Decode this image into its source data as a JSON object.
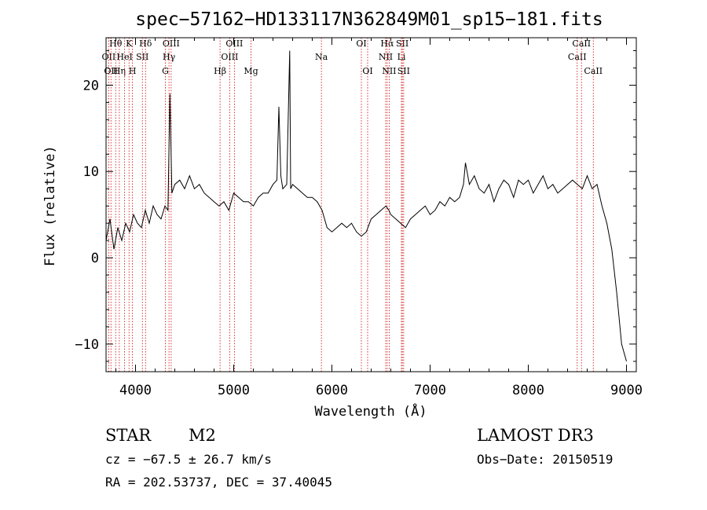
{
  "chart_data": {
    "type": "line",
    "title": "spec−57162−HD133117N362849M01_sp15−181.fits",
    "xlabel": "Wavelength (Å)",
    "ylabel": "Flux (relative)",
    "xlim": [
      3700,
      9100
    ],
    "ylim": [
      -13.2,
      25.5
    ],
    "xticks": [
      4000,
      5000,
      6000,
      7000,
      8000,
      9000
    ],
    "xtick_labels": [
      "4000",
      "5000",
      "6000",
      "7000",
      "8000",
      "9000"
    ],
    "yticks": [
      -10,
      0,
      10,
      20
    ],
    "ytick_labels": [
      "−10",
      "0",
      "10",
      "20"
    ],
    "series": [
      {
        "x": [
          3700,
          3740,
          3780,
          3820,
          3860,
          3900,
          3940,
          3980,
          4020,
          4060,
          4100,
          4140,
          4180,
          4220,
          4260,
          4300,
          4330,
          4350,
          4370,
          4400,
          4450,
          4500,
          4550,
          4600,
          4650,
          4700,
          4750,
          4800,
          4850,
          4900,
          4950,
          5000,
          5050,
          5100,
          5150,
          5200,
          5250,
          5300,
          5350,
          5400,
          5440,
          5460,
          5480,
          5500,
          5540,
          5570,
          5580,
          5600,
          5650,
          5700,
          5750,
          5800,
          5850,
          5900,
          5950,
          6000,
          6050,
          6100,
          6150,
          6200,
          6250,
          6300,
          6350,
          6400,
          6450,
          6500,
          6550,
          6580,
          6600,
          6650,
          6700,
          6750,
          6800,
          6850,
          6900,
          6950,
          7000,
          7050,
          7100,
          7150,
          7200,
          7250,
          7300,
          7340,
          7360,
          7400,
          7450,
          7500,
          7550,
          7600,
          7650,
          7700,
          7750,
          7800,
          7850,
          7900,
          7950,
          8000,
          8050,
          8100,
          8150,
          8200,
          8250,
          8300,
          8350,
          8400,
          8450,
          8500,
          8550,
          8600,
          8650,
          8700,
          8750,
          8800,
          8850,
          8900,
          8950,
          9000
        ],
        "y": [
          2.0,
          4.5,
          1.0,
          3.5,
          2.0,
          4.0,
          3.0,
          5.0,
          4.0,
          3.5,
          5.5,
          4.0,
          6.0,
          5.0,
          4.5,
          6.0,
          5.5,
          19.0,
          7.5,
          8.5,
          9.0,
          8.0,
          9.5,
          8.0,
          8.5,
          7.5,
          7.0,
          6.5,
          6.0,
          6.5,
          5.5,
          7.5,
          7.0,
          6.5,
          6.5,
          6.0,
          7.0,
          7.5,
          7.5,
          8.5,
          9.0,
          17.5,
          9.5,
          8.0,
          8.5,
          24.0,
          8.0,
          8.5,
          8.0,
          7.5,
          7.0,
          7.0,
          6.5,
          5.5,
          3.5,
          3.0,
          3.5,
          4.0,
          3.5,
          4.0,
          3.0,
          2.5,
          3.0,
          4.5,
          5.0,
          5.5,
          6.0,
          5.5,
          5.0,
          4.5,
          4.0,
          3.5,
          4.5,
          5.0,
          5.5,
          6.0,
          5.0,
          5.5,
          6.5,
          6.0,
          7.0,
          6.5,
          7.0,
          8.5,
          11.0,
          8.5,
          9.5,
          8.0,
          7.5,
          8.5,
          6.5,
          8.0,
          9.0,
          8.5,
          7.0,
          9.0,
          8.5,
          9.0,
          7.5,
          8.5,
          9.5,
          8.0,
          8.5,
          7.5,
          8.0,
          8.5,
          9.0,
          8.5,
          8.0,
          9.5,
          8.0,
          8.5,
          6.0,
          4.0,
          1.0,
          -4.0,
          -10.0,
          -12.0
        ]
      }
    ],
    "lines": [
      {
        "x": 3727,
        "label": "OII",
        "row": 1
      },
      {
        "x": 3750,
        "label": "OII",
        "row": 2
      },
      {
        "x": 3798,
        "label": "Hθ",
        "row": 0
      },
      {
        "x": 3835,
        "label": "Hη",
        "row": 2
      },
      {
        "x": 3889,
        "label": "HeI",
        "row": 1
      },
      {
        "x": 3934,
        "label": "K",
        "row": 0
      },
      {
        "x": 3969,
        "label": "H",
        "row": 2
      },
      {
        "x": 4070,
        "label": "SII",
        "row": 1
      },
      {
        "x": 4102,
        "label": "Hδ",
        "row": 0
      },
      {
        "x": 4304,
        "label": "G",
        "row": 2
      },
      {
        "x": 4341,
        "label": "Hγ",
        "row": 1
      },
      {
        "x": 4363,
        "label": "OIII",
        "row": 0
      },
      {
        "x": 4861,
        "label": "Hβ",
        "row": 2
      },
      {
        "x": 4959,
        "label": "OIII",
        "row": 1
      },
      {
        "x": 5007,
        "label": "OIII",
        "row": 0
      },
      {
        "x": 5176,
        "label": "Mg",
        "row": 2
      },
      {
        "x": 5893,
        "label": "Na",
        "row": 1
      },
      {
        "x": 6300,
        "label": "OI",
        "row": 0
      },
      {
        "x": 6364,
        "label": "OI",
        "row": 2
      },
      {
        "x": 6548,
        "label": "NII",
        "row": 1
      },
      {
        "x": 6563,
        "label": "Hα",
        "row": 0
      },
      {
        "x": 6583,
        "label": "NII",
        "row": 2
      },
      {
        "x": 6708,
        "label": "Li",
        "row": 1
      },
      {
        "x": 6717,
        "label": "SII",
        "row": 0
      },
      {
        "x": 6731,
        "label": "SII",
        "row": 2
      },
      {
        "x": 8498,
        "label": "CaII",
        "row": 1
      },
      {
        "x": 8542,
        "label": "CaII",
        "row": 0
      },
      {
        "x": 8662,
        "label": "CaII",
        "row": 2
      }
    ]
  },
  "info": {
    "class_label": "STAR",
    "subclass_label": "M2",
    "survey": "LAMOST DR3",
    "cz": "cz = −67.5 ± 26.7 km/s",
    "obs_date": "Obs−Date: 20150519",
    "coords": "RA = 202.53737, DEC =  37.40045"
  },
  "colors": {
    "spectrum": "#000000",
    "line_marker": "#cc0000"
  }
}
